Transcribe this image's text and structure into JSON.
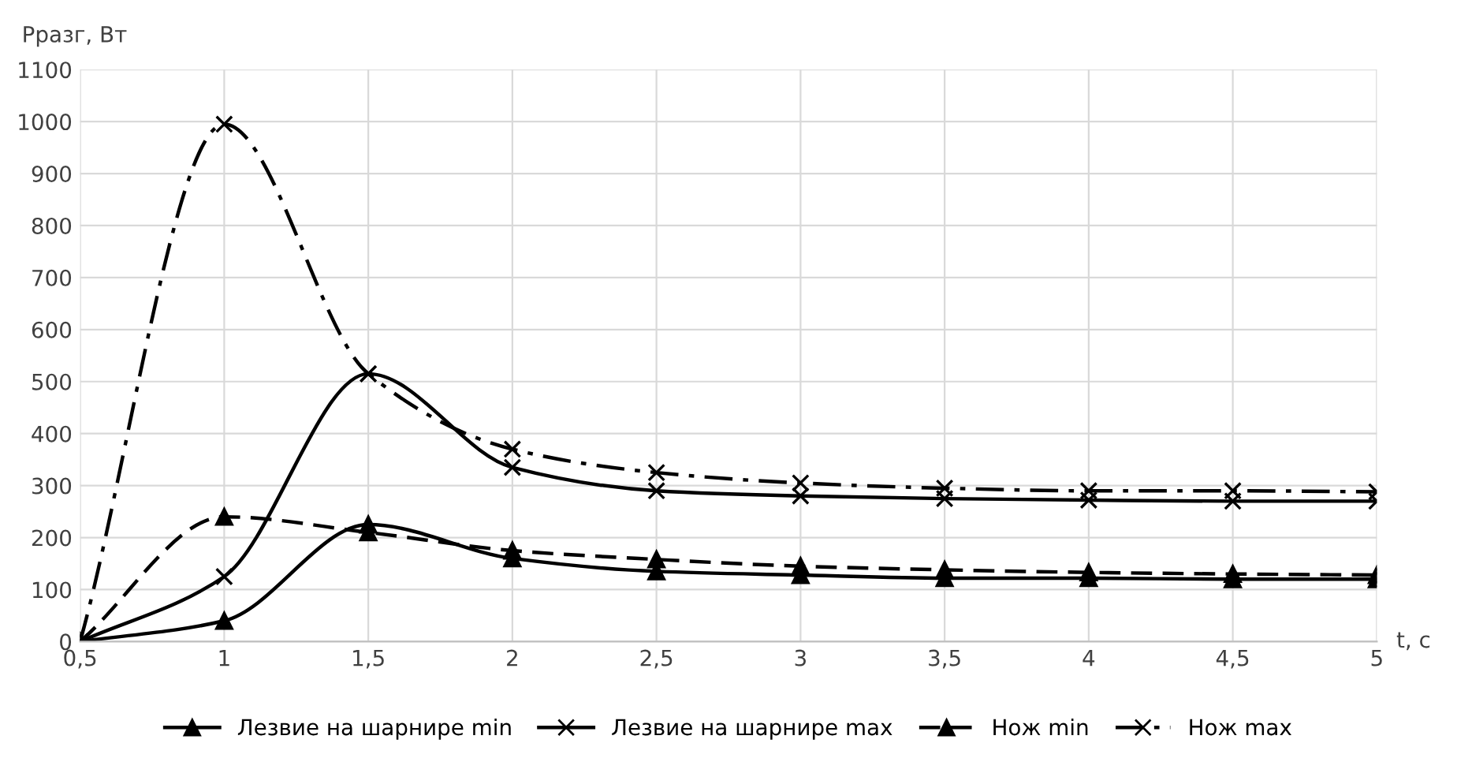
{
  "chart_data": {
    "type": "line",
    "ylabel": "Рразг, Вт",
    "xlabel": "t, c",
    "x": [
      0.5,
      1,
      1.5,
      2,
      2.5,
      3,
      3.5,
      4,
      4.5,
      5
    ],
    "xlim": [
      0.5,
      5
    ],
    "xticks": [
      {
        "value": 0.5,
        "label": "0,5"
      },
      1,
      {
        "value": 1.5,
        "label": "1,5"
      },
      2,
      {
        "value": 2.5,
        "label": "2,5"
      },
      3,
      {
        "value": 3.5,
        "label": "3,5"
      },
      4,
      {
        "value": 4.5,
        "label": "4,5"
      },
      5
    ],
    "ylim": [
      0,
      1100
    ],
    "yticks": [
      0,
      100,
      200,
      300,
      400,
      500,
      600,
      700,
      800,
      900,
      1000,
      1100
    ],
    "grid": true,
    "legend": "bottom",
    "series": [
      {
        "name": "Лезвие на шарнире min",
        "color": "#000000",
        "marker": "triangle",
        "line_style": "solid",
        "values": [
          0,
          40,
          225,
          160,
          135,
          128,
          122,
          122,
          120,
          120
        ]
      },
      {
        "name": "Лезвие на шарнире max",
        "color": "#000000",
        "marker": "cross",
        "line_style": "solid",
        "values": [
          0,
          125,
          515,
          335,
          290,
          280,
          275,
          272,
          270,
          270
        ]
      },
      {
        "name": "Нож min",
        "color": "#000000",
        "marker": "triangle",
        "line_style": "dashed",
        "values": [
          0,
          240,
          210,
          175,
          158,
          145,
          138,
          133,
          130,
          128
        ]
      },
      {
        "name": "Нож max",
        "color": "#000000",
        "marker": "cross",
        "line_style": "dashdot",
        "values": [
          0,
          995,
          515,
          370,
          325,
          305,
          295,
          290,
          290,
          288
        ]
      }
    ]
  }
}
